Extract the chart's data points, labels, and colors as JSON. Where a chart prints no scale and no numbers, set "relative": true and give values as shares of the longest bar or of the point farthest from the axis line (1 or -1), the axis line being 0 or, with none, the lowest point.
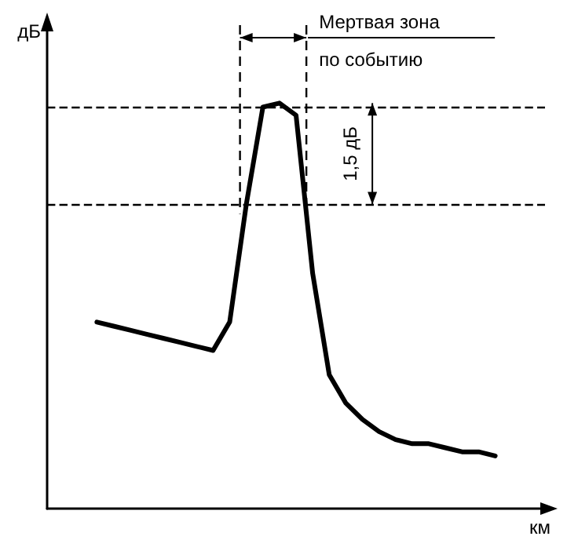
{
  "chart_data": {
    "type": "line",
    "relative": true,
    "xlabel": "км",
    "ylabel": "дБ",
    "color": "#000000",
    "marker": "none",
    "line_style": "solid",
    "categories": [
      null,
      null,
      null,
      null,
      null,
      null,
      null,
      null,
      null,
      null,
      null,
      null,
      null,
      null,
      null,
      null,
      null,
      null,
      null,
      null,
      null,
      null,
      null,
      null,
      null,
      null,
      null,
      null,
      null,
      null,
      null
    ],
    "values": [
      null,
      null,
      null,
      0.46,
      0.45,
      0.44,
      0.43,
      0.42,
      0.41,
      0.4,
      0.39,
      0.46,
      0.75,
      0.99,
      1,
      0.97,
      0.58,
      0.33,
      0.26,
      0.22,
      0.19,
      0.17,
      0.16,
      0.16,
      0.15,
      0.14,
      0.14,
      0.13,
      null,
      null,
      null
    ],
    "ref_lines": [
      {
        "axis": "y",
        "value": 0.99,
        "line_style": "dashed",
        "color": "#000000"
      },
      {
        "axis": "y",
        "value": 0.75,
        "line_style": "dashed",
        "color": "#000000"
      }
    ],
    "annotations": [
      "Мертвая зона по событию",
      "1,5 дБ"
    ]
  }
}
